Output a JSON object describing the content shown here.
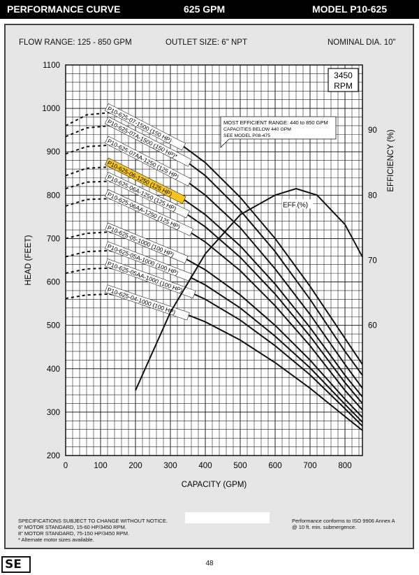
{
  "header": {
    "title": "PERFORMANCE CURVE",
    "gpm": "625 GPM",
    "model": "MODEL  P10-625"
  },
  "specs": {
    "flow_range": "FLOW RANGE: 125 - 850 GPM",
    "outlet": "OUTLET SIZE: 6\" NPT",
    "diameter": "NOMINAL DIA. 10\""
  },
  "rpm_box": [
    "3450",
    "RPM"
  ],
  "annotation": [
    "MOST EFFICIENT RANGE: 440 to 850 GPM",
    "CAPACITIES BELOW 440 GPM",
    "SEE  MODEL  P08-475"
  ],
  "eff_label": "EFF.(%)",
  "footer": {
    "left": [
      "SPECIFICATIONS SUBJECT TO CHANGE WITHOUT NOTICE.",
      "6\" MOTOR STANDARD, 15-60 HP/3450 RPM.",
      "8\" MOTOR STANDARD, 75-150 HP/3450 RPM.",
      "* Alternate motor sizes available."
    ],
    "right": [
      "Performance conforms to ISO 9906 Annex A",
      "@ 10 ft. min. submergence."
    ],
    "page": "48",
    "logo": "SE"
  },
  "chart_data": {
    "type": "line",
    "xlabel": "CAPACITY (GPM)",
    "ylabel": "HEAD (FEET)",
    "y2label": "EFFICIENCY (%)",
    "xlim": [
      0,
      850
    ],
    "ylim": [
      200,
      1100
    ],
    "y2lim": [
      40,
      100
    ],
    "xticks": [
      0,
      100,
      200,
      300,
      400,
      500,
      600,
      700,
      800
    ],
    "yticks": [
      200,
      300,
      400,
      500,
      600,
      700,
      800,
      900,
      1000,
      1100
    ],
    "y2ticks": [
      60,
      70,
      80,
      90
    ],
    "grid": true,
    "highlight_color": "#f5c518",
    "series": [
      {
        "name": "P10-625-07-1500 (150 HP)",
        "highlight": false,
        "points": [
          [
            0,
            960
          ],
          [
            60,
            985
          ],
          [
            125,
            990
          ],
          [
            200,
            975
          ],
          [
            300,
            935
          ],
          [
            400,
            875
          ],
          [
            500,
            795
          ],
          [
            600,
            700
          ],
          [
            700,
            590
          ],
          [
            800,
            470
          ],
          [
            850,
            410
          ]
        ]
      },
      {
        "name": "P10-625-07A-1500 (150 HP)*",
        "highlight": false,
        "points": [
          [
            0,
            935
          ],
          [
            60,
            955
          ],
          [
            125,
            960
          ],
          [
            200,
            945
          ],
          [
            300,
            905
          ],
          [
            400,
            845
          ],
          [
            500,
            765
          ],
          [
            600,
            670
          ],
          [
            700,
            560
          ],
          [
            800,
            440
          ],
          [
            850,
            385
          ]
        ]
      },
      {
        "name": "P10-625-07AA-1250 (125 HP)",
        "highlight": false,
        "points": [
          [
            0,
            895
          ],
          [
            60,
            912
          ],
          [
            125,
            915
          ],
          [
            200,
            898
          ],
          [
            300,
            860
          ],
          [
            400,
            800
          ],
          [
            500,
            725
          ],
          [
            600,
            630
          ],
          [
            700,
            525
          ],
          [
            800,
            410
          ],
          [
            850,
            355
          ]
        ]
      },
      {
        "name": "P10-625-06-1250 (125 HP)",
        "highlight": true,
        "points": [
          [
            0,
            845
          ],
          [
            60,
            862
          ],
          [
            125,
            865
          ],
          [
            200,
            850
          ],
          [
            300,
            812
          ],
          [
            400,
            755
          ],
          [
            500,
            683
          ],
          [
            600,
            595
          ],
          [
            700,
            495
          ],
          [
            800,
            385
          ],
          [
            850,
            335
          ]
        ]
      },
      {
        "name": "P10-625-06A-1250 (125 HP)",
        "highlight": false,
        "points": [
          [
            0,
            815
          ],
          [
            60,
            830
          ],
          [
            125,
            832
          ],
          [
            200,
            818
          ],
          [
            300,
            782
          ],
          [
            400,
            727
          ],
          [
            500,
            657
          ],
          [
            600,
            572
          ],
          [
            700,
            475
          ],
          [
            800,
            368
          ],
          [
            850,
            320
          ]
        ]
      },
      {
        "name": "P10-625-06AA-1250 (125 HP)",
        "highlight": false,
        "points": [
          [
            0,
            775
          ],
          [
            60,
            790
          ],
          [
            125,
            792
          ],
          [
            200,
            778
          ],
          [
            300,
            744
          ],
          [
            400,
            692
          ],
          [
            500,
            626
          ],
          [
            600,
            545
          ],
          [
            700,
            453
          ],
          [
            800,
            350
          ],
          [
            850,
            305
          ]
        ]
      },
      {
        "name": "P10-625-05-1000 (100 HP)",
        "highlight": false,
        "points": [
          [
            0,
            700
          ],
          [
            60,
            712
          ],
          [
            125,
            715
          ],
          [
            200,
            703
          ],
          [
            300,
            673
          ],
          [
            400,
            628
          ],
          [
            500,
            570
          ],
          [
            600,
            500
          ],
          [
            700,
            420
          ],
          [
            800,
            330
          ],
          [
            850,
            288
          ]
        ]
      },
      {
        "name": "P10-625-05A-1000 (100 HP)",
        "highlight": false,
        "points": [
          [
            0,
            658
          ],
          [
            60,
            670
          ],
          [
            125,
            672
          ],
          [
            200,
            661
          ],
          [
            300,
            634
          ],
          [
            400,
            593
          ],
          [
            500,
            540
          ],
          [
            600,
            475
          ],
          [
            700,
            402
          ],
          [
            800,
            318
          ],
          [
            850,
            277
          ]
        ]
      },
      {
        "name": "P10-625-05AA-1000 (100 HP)",
        "highlight": false,
        "points": [
          [
            0,
            620
          ],
          [
            60,
            630
          ],
          [
            125,
            632
          ],
          [
            200,
            622
          ],
          [
            300,
            597
          ],
          [
            400,
            560
          ],
          [
            500,
            512
          ],
          [
            600,
            453
          ],
          [
            700,
            386
          ],
          [
            800,
            308
          ],
          [
            850,
            268
          ]
        ]
      },
      {
        "name": "P10-625-04-1000 (100 HP)",
        "highlight": false,
        "points": [
          [
            0,
            562
          ],
          [
            60,
            570
          ],
          [
            125,
            572
          ],
          [
            200,
            563
          ],
          [
            300,
            540
          ],
          [
            400,
            508
          ],
          [
            500,
            466
          ],
          [
            600,
            414
          ],
          [
            700,
            355
          ],
          [
            800,
            290
          ],
          [
            850,
            258
          ]
        ]
      }
    ],
    "efficiency": {
      "name": "EFF.(%)",
      "points": [
        [
          200,
          50
        ],
        [
          300,
          62
        ],
        [
          400,
          71
        ],
        [
          500,
          77
        ],
        [
          600,
          80
        ],
        [
          660,
          81
        ],
        [
          720,
          80
        ],
        [
          800,
          75.5
        ],
        [
          850,
          70.5
        ]
      ]
    }
  }
}
